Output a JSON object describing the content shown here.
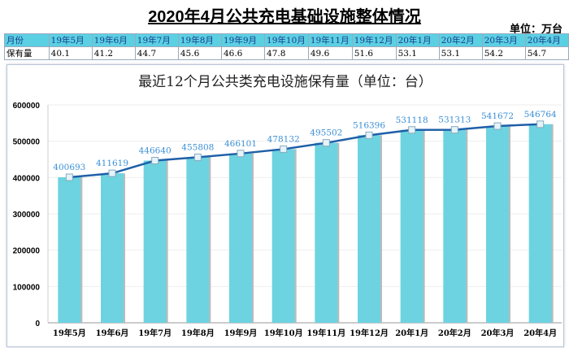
{
  "header": {
    "title": "2020年4月公共充电基础设施整体情况",
    "unit": "单位：万台"
  },
  "table": {
    "row_header": "月份",
    "value_header": "保有量",
    "months": [
      "19年5月",
      "19年6月",
      "19年7月",
      "19年8月",
      "19年9月",
      "19年10月",
      "19年11月",
      "19年12月",
      "20年1月",
      "20年2月",
      "20年3月",
      "20年4月"
    ],
    "values": [
      "40.1",
      "41.2",
      "44.7",
      "45.6",
      "46.6",
      "47.8",
      "49.6",
      "51.6",
      "53.1",
      "53.1",
      "54.2",
      "54.7"
    ]
  },
  "chart_data": {
    "type": "bar",
    "title": "最近12个月公共类充电设施保有量（单位：台）",
    "categories": [
      "19年5月",
      "19年6月",
      "19年7月",
      "19年8月",
      "19年9月",
      "19年10月",
      "19年11月",
      "19年12月",
      "20年1月",
      "20年2月",
      "20年3月",
      "20年4月"
    ],
    "values": [
      400693,
      411619,
      446640,
      455808,
      466101,
      478132,
      495502,
      516396,
      531118,
      531313,
      541672,
      546764
    ],
    "ylim": [
      0,
      600000
    ],
    "yticks": [
      "0",
      "100000",
      "200000",
      "300000",
      "400000",
      "500000",
      "600000"
    ],
    "series_line": "same values as line with markers",
    "bar_color": "#6dd3e0",
    "line_color": "#1f5fa8",
    "label_color": "#3a8fd6",
    "grid": true
  }
}
